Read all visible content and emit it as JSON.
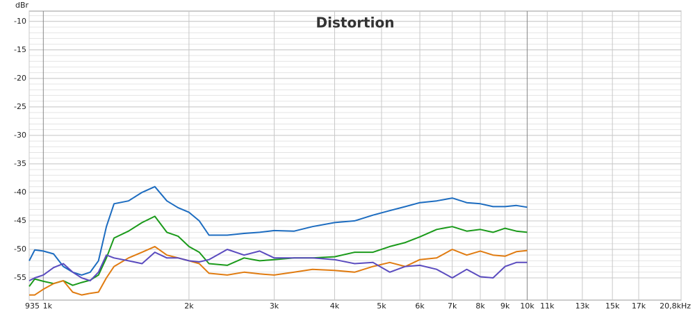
{
  "chart_data": {
    "type": "line",
    "title": "Distortion",
    "y_label": "dBr",
    "x_log": true,
    "grid": true,
    "xlim": [
      935,
      20800
    ],
    "ylim": [
      -58.9,
      -8.2
    ],
    "xticks": [
      935,
      {
        "value": 1000,
        "label": "1k"
      },
      {
        "value": 2000,
        "label": "2k"
      },
      {
        "value": 3000,
        "label": "3k"
      },
      {
        "value": 4000,
        "label": "4k"
      },
      {
        "value": 5000,
        "label": "5k"
      },
      {
        "value": 6000,
        "label": "6k"
      },
      {
        "value": 7000,
        "label": "7k"
      },
      {
        "value": 8000,
        "label": "8k"
      },
      {
        "value": 9000,
        "label": "9k"
      },
      {
        "value": 10000,
        "label": "10k"
      },
      {
        "value": 11000,
        "label": "11k"
      },
      {
        "value": 13000,
        "label": "13k"
      },
      {
        "value": 15000,
        "label": "15k"
      },
      {
        "value": 17000,
        "label": "17k"
      },
      {
        "value": 20800,
        "label": "20,8kHz"
      }
    ],
    "yticks": [
      -10,
      -15,
      -20,
      -25,
      -30,
      -35,
      -40,
      -45,
      -50,
      -55
    ],
    "x": [
      935,
      960,
      1000,
      1050,
      1100,
      1150,
      1200,
      1250,
      1300,
      1350,
      1400,
      1500,
      1600,
      1700,
      1800,
      1900,
      2000,
      2100,
      2200,
      2400,
      2600,
      2800,
      3000,
      3300,
      3600,
      4000,
      4400,
      4800,
      5200,
      5600,
      6000,
      6500,
      7000,
      7500,
      8000,
      8500,
      9000,
      9500,
      10000
    ],
    "series": [
      {
        "color": "#1c6cc0",
        "values": [
          -52,
          -50.1,
          -50.3,
          -50.8,
          -53,
          -54,
          -54.5,
          -54,
          -52,
          -46,
          -42,
          -41.5,
          -40,
          -39,
          -41.5,
          -42.7,
          -43.5,
          -45,
          -47.5,
          -47.5,
          -47.2,
          -47,
          -46.7,
          -46.8,
          -46,
          -45.3,
          -45,
          -44,
          -43.2,
          -42.5,
          -41.8,
          -41.5,
          -41,
          -41.8,
          -42,
          -42.5,
          -42.5,
          -42.3,
          -42.6
        ]
      },
      {
        "color": "#1a9a1a",
        "values": [
          -56.5,
          -55.2,
          -55.6,
          -56,
          -55.5,
          -56.3,
          -55.8,
          -55.4,
          -54.5,
          -51.5,
          -48,
          -46.8,
          -45.3,
          -44.2,
          -47,
          -47.7,
          -49.5,
          -50.5,
          -52.5,
          -52.8,
          -51.5,
          -52,
          -51.8,
          -51.5,
          -51.5,
          -51.3,
          -50.5,
          -50.5,
          -49.5,
          -48.8,
          -47.8,
          -46.5,
          -46,
          -46.8,
          -46.5,
          -47,
          -46.3,
          -46.8,
          -47
        ]
      },
      {
        "color": "#e07b10",
        "values": [
          -58,
          -58,
          -57,
          -56,
          -55.5,
          -57.5,
          -58,
          -57.7,
          -57.5,
          -55,
          -53,
          -51.5,
          -50.5,
          -49.5,
          -51,
          -51.5,
          -52,
          -52.5,
          -54.2,
          -54.5,
          -54,
          -54.3,
          -54.5,
          -54,
          -53.5,
          -53.7,
          -54,
          -53,
          -52.3,
          -53,
          -51.8,
          -51.5,
          -50,
          -51,
          -50.3,
          -51,
          -51.2,
          -50.4,
          -50.2
        ]
      },
      {
        "color": "#5a4bbf",
        "values": [
          -55.5,
          -55,
          -54.5,
          -53.2,
          -52.5,
          -54,
          -55,
          -55.5,
          -54,
          -51,
          -51.5,
          -52,
          -52.5,
          -50.5,
          -51.5,
          -51.5,
          -52,
          -52.2,
          -51.8,
          -50,
          -51,
          -50.3,
          -51.5,
          -51.5,
          -51.5,
          -51.8,
          -52.5,
          -52.3,
          -54,
          -53,
          -52.8,
          -53.5,
          -55,
          -53.5,
          -54.8,
          -55,
          -53,
          -52.3,
          -52.3
        ]
      }
    ]
  }
}
